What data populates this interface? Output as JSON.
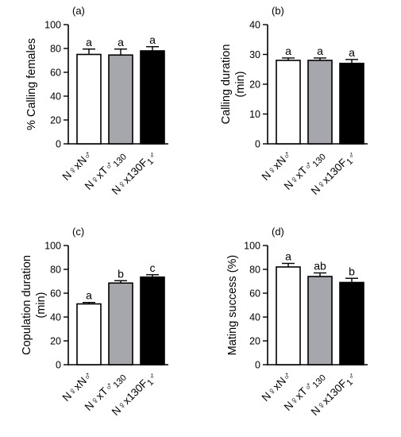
{
  "colors": {
    "bar_fills": [
      "#ffffff",
      "#a6a6ad",
      "#000000"
    ]
  },
  "chart_data": [
    {
      "type": "bar",
      "panel_label": "(a)",
      "ylabel": "% Calling females",
      "ylim": [
        0,
        100
      ],
      "yticks": [
        "0",
        "20",
        "40",
        "60",
        "80",
        "100"
      ],
      "categories": [
        "N♀xN♂",
        "N♀xT♂130",
        "N♀x130F1♂"
      ],
      "values": [
        75,
        74.5,
        78
      ],
      "errors": [
        4.5,
        5,
        3.5
      ],
      "letters": [
        "a",
        "a",
        "a"
      ]
    },
    {
      "type": "bar",
      "panel_label": "(b)",
      "ylabel": "Calling duration (min)",
      "ylim": [
        0,
        40
      ],
      "yticks": [
        "0",
        "10",
        "20",
        "30",
        "40"
      ],
      "categories": [
        "N♀xN♂",
        "N♀xT♂130",
        "N♀x130F1♂"
      ],
      "values": [
        28,
        28,
        27
      ],
      "errors": [
        0.8,
        0.8,
        1.3
      ],
      "letters": [
        "a",
        "a",
        "a"
      ]
    },
    {
      "type": "bar",
      "panel_label": "(c)",
      "ylabel": "Copulation duration (min)",
      "ylim": [
        0,
        100
      ],
      "yticks": [
        "0",
        "20",
        "40",
        "60",
        "80",
        "100"
      ],
      "categories": [
        "N♀xN♂",
        "N♀xT♂130",
        "N♀x130F1♂"
      ],
      "values": [
        51,
        68.5,
        73.5
      ],
      "errors": [
        1.2,
        2,
        2
      ],
      "letters": [
        "a",
        "b",
        "c"
      ]
    },
    {
      "type": "bar",
      "panel_label": "(d)",
      "ylabel": "Mating success (%)",
      "ylim": [
        0,
        100
      ],
      "yticks": [
        "0",
        "20",
        "40",
        "60",
        "80",
        "100"
      ],
      "categories": [
        "N♀xN♂",
        "N♀xT♂130",
        "N♀x130F1♂"
      ],
      "values": [
        82,
        74,
        69
      ],
      "errors": [
        3,
        3,
        3.5
      ],
      "letters": [
        "a",
        "ab",
        "b"
      ]
    }
  ]
}
